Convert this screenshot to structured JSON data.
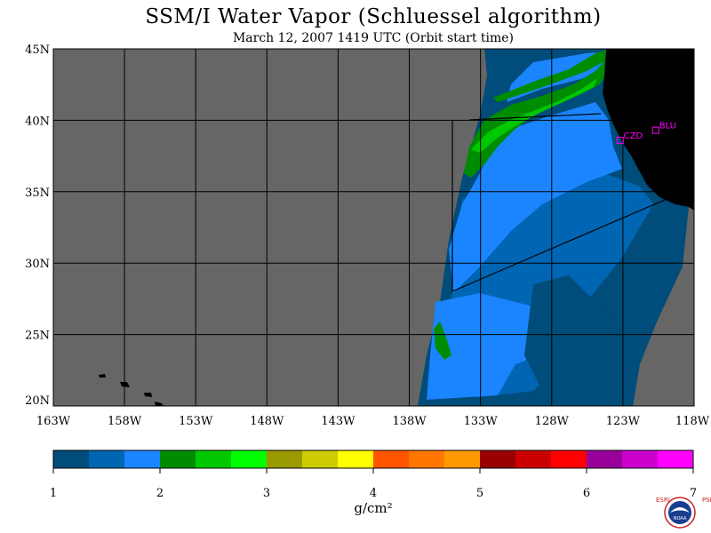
{
  "title": "SSM/I Water Vapor (Schluessel algorithm)",
  "subtitle": "March 12, 2007  1419 UTC  (Orbit start time)",
  "lat_labels": [
    "45N",
    "40N",
    "35N",
    "30N",
    "25N",
    "20N"
  ],
  "lon_labels": [
    "163W",
    "158W",
    "153W",
    "148W",
    "143W",
    "138W",
    "133W",
    "128W",
    "123W",
    "118W"
  ],
  "sites": [
    {
      "code": "CZD",
      "lat": 38.6,
      "lon": -123.2
    },
    {
      "code": "BLU",
      "lat": 39.3,
      "lon": -120.7
    }
  ],
  "colorbar": {
    "unit_label": "g/cm²",
    "tick_labels": [
      "1",
      "2",
      "3",
      "4",
      "5",
      "6",
      "7"
    ],
    "colors": [
      "#004c7a",
      "#0066b3",
      "#1a85ff",
      "#008c00",
      "#00c800",
      "#00ff00",
      "#999900",
      "#cccc00",
      "#ffff00",
      "#ff5500",
      "#ff7700",
      "#ff9900",
      "#990000",
      "#cc0000",
      "#ff0000",
      "#990099",
      "#cc00cc",
      "#ff00ff"
    ]
  },
  "map_colors": {
    "no_data": "#666666",
    "land": "#000000",
    "grid": "#000000"
  },
  "logo": {
    "left_letters": "ESRL",
    "right_letters": "PSD",
    "badge": "NOAA"
  }
}
